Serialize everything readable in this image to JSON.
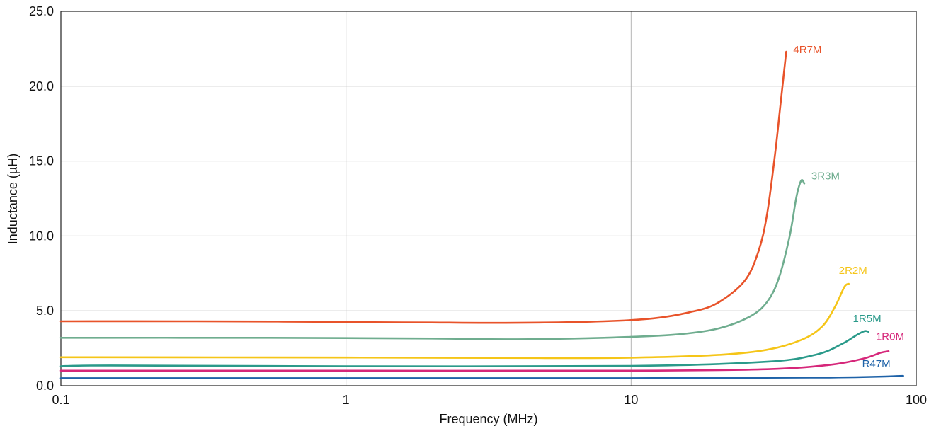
{
  "chart_data": {
    "type": "line",
    "xlabel": "Frequency (MHz)",
    "ylabel": "Inductance (µH)",
    "xscale": "log",
    "xlim": [
      0.1,
      100
    ],
    "ylim": [
      0,
      25
    ],
    "x_ticks": [
      "0.1",
      "1",
      "10",
      "100"
    ],
    "y_ticks": [
      "0.0",
      "5.0",
      "10.0",
      "15.0",
      "20.0",
      "25.0"
    ],
    "grid": true,
    "legend": "labels at end of each series",
    "series": [
      {
        "name": "4R7M",
        "color": "#e8532a",
        "x": [
          0.1,
          0.3,
          0.6,
          1,
          2,
          4,
          8,
          12,
          16,
          20,
          25,
          28,
          30,
          32,
          33.5,
          35
        ],
        "y": [
          4.3,
          4.3,
          4.28,
          4.25,
          4.22,
          4.2,
          4.3,
          4.5,
          4.9,
          5.5,
          7.0,
          9.0,
          11.5,
          15.5,
          19.0,
          22.3
        ]
      },
      {
        "name": "3R3M",
        "color": "#6fad8f",
        "x": [
          0.1,
          0.5,
          1,
          2,
          4,
          8,
          14,
          20,
          26,
          30,
          33,
          36,
          38,
          39.5,
          40.5
        ],
        "y": [
          3.2,
          3.2,
          3.18,
          3.15,
          3.1,
          3.2,
          3.4,
          3.8,
          4.6,
          5.6,
          7.2,
          10.0,
          12.6,
          13.7,
          13.5
        ]
      },
      {
        "name": "2R2M",
        "color": "#f5c518",
        "x": [
          0.1,
          1,
          5,
          10,
          20,
          30,
          40,
          47,
          52,
          56,
          58
        ],
        "y": [
          1.9,
          1.88,
          1.85,
          1.87,
          2.05,
          2.4,
          3.1,
          4.0,
          5.3,
          6.6,
          6.8
        ]
      },
      {
        "name": "1R5M",
        "color": "#2a9a8a",
        "x": [
          0.1,
          0.15,
          1,
          10,
          30,
          45,
          55,
          62,
          66,
          68
        ],
        "y": [
          1.3,
          1.35,
          1.3,
          1.32,
          1.6,
          2.1,
          2.8,
          3.4,
          3.65,
          3.6
        ]
      },
      {
        "name": "1R0M",
        "color": "#d6277a",
        "x": [
          0.1,
          1,
          10,
          30,
          50,
          65,
          75,
          80
        ],
        "y": [
          1.0,
          1.0,
          1.0,
          1.1,
          1.4,
          1.8,
          2.2,
          2.3
        ]
      },
      {
        "name": "R47M",
        "color": "#1e62a8",
        "x": [
          0.1,
          1,
          10,
          50,
          90
        ],
        "y": [
          0.5,
          0.5,
          0.5,
          0.55,
          0.65
        ]
      }
    ]
  }
}
